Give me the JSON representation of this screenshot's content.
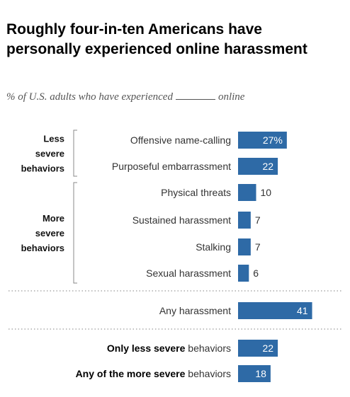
{
  "title": "Roughly four-in-ten Americans have personally experienced online harassment",
  "subtitle_before": "% of U.S. adults who have experienced",
  "subtitle_after": "online",
  "chart_data": {
    "type": "bar",
    "orientation": "horizontal",
    "bar_color": "#2e6aa6",
    "groups": [
      {
        "label_lines": [
          "Less",
          "severe",
          "behaviors"
        ],
        "category_indices": [
          0,
          1
        ]
      },
      {
        "label_lines": [
          "More",
          "severe",
          "behaviors"
        ],
        "category_indices": [
          2,
          3,
          4,
          5
        ]
      }
    ],
    "categories": [
      {
        "label": "Offensive name-calling",
        "value": 27,
        "display": "27%"
      },
      {
        "label": "Purposeful embarrassment",
        "value": 22,
        "display": "22"
      },
      {
        "label": "Physical threats",
        "value": 10,
        "display": "10"
      },
      {
        "label": "Sustained harassment",
        "value": 7,
        "display": "7"
      },
      {
        "label": "Stalking",
        "value": 7,
        "display": "7"
      },
      {
        "label": "Sexual harassment",
        "value": 6,
        "display": "6"
      },
      {
        "label": "Any harassment",
        "value": 41,
        "display": "41"
      },
      {
        "label_bold": "Only less severe",
        "label_rest": " behaviors",
        "value": 22,
        "display": "22"
      },
      {
        "label_bold": "Any of the more severe",
        "label_rest": " behaviors",
        "value": 18,
        "display": "18"
      }
    ]
  }
}
